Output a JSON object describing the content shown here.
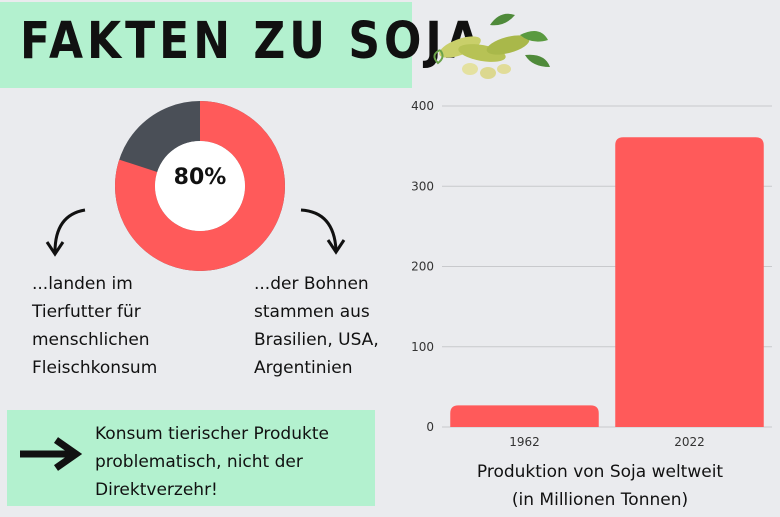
{
  "title": "FAKTEN ZU SOJA",
  "donut": {
    "percent_label": "80%",
    "value": 80,
    "colors": {
      "main": "#ff5a5a",
      "rest": "#4a4f57"
    }
  },
  "left_text": "...landen im\nTierfutter für\nmenschlichen\nFleischkonsum",
  "right_text": "...der Bohnen\nstammen aus\nBrasilien, USA,\nArgentinien",
  "note": "Konsum tierischer Produkte\nproblematisch, nicht der\nDirektverzehr!",
  "chart_caption_line1": "Produktion von Soja weltweit",
  "chart_caption_line2": "(in Millionen Tonnen)",
  "chart_data": {
    "type": "bar",
    "categories": [
      "1962",
      "2022"
    ],
    "values": [
      27,
      361
    ],
    "ylim": [
      0,
      400
    ],
    "yticks": [
      0,
      100,
      200,
      300,
      400
    ],
    "grid": true,
    "bar_color": "#ff5a5a"
  }
}
